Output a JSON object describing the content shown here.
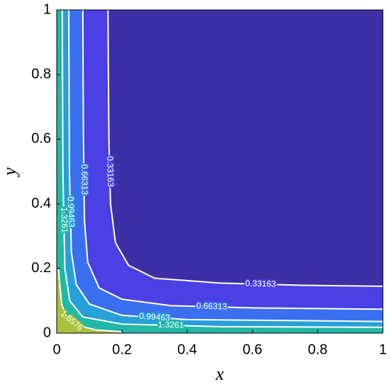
{
  "chart_data": {
    "type": "contour",
    "xlabel": "x",
    "ylabel": "y",
    "xlim": [
      0,
      1
    ],
    "ylim": [
      0,
      1
    ],
    "xticks": [
      0,
      0.2,
      0.4,
      0.6,
      0.8,
      1
    ],
    "yticks": [
      0,
      0.2,
      0.4,
      0.6,
      0.8,
      1
    ],
    "fill_colors": [
      "#3d2fa5",
      "#4a40e3",
      "#3a70ef",
      "#279fd9",
      "#21b8a6",
      "#a9c23b"
    ],
    "line_color": "#ffffff",
    "contours": [
      {
        "level": 0.33163,
        "x": [
          0.157,
          0.16,
          0.165,
          0.18,
          0.22,
          0.3,
          0.5,
          0.75,
          1
        ],
        "y": [
          1,
          0.6,
          0.4,
          0.28,
          0.21,
          0.17,
          0.155,
          0.148,
          0.145
        ]
      },
      {
        "level": 0.66313,
        "x": [
          0.08,
          0.082,
          0.085,
          0.095,
          0.13,
          0.2,
          0.35,
          0.6,
          1
        ],
        "y": [
          1,
          0.6,
          0.35,
          0.22,
          0.14,
          0.105,
          0.085,
          0.078,
          0.074
        ]
      },
      {
        "level": 0.99463,
        "x": [
          0.037,
          0.039,
          0.045,
          0.06,
          0.1,
          0.2,
          0.4,
          1
        ],
        "y": [
          1,
          0.5,
          0.25,
          0.15,
          0.09,
          0.055,
          0.042,
          0.036
        ]
      },
      {
        "level": 1.3261,
        "x": [
          0.017,
          0.019,
          0.025,
          0.04,
          0.08,
          0.2,
          0.5,
          1
        ],
        "y": [
          1,
          0.5,
          0.2,
          0.1,
          0.05,
          0.028,
          0.02,
          0.018
        ]
      },
      {
        "level": 1.6576,
        "x": [
          0.005,
          0.015,
          0.03,
          0.06,
          0.12,
          0.2
        ],
        "y": [
          0.2,
          0.09,
          0.05,
          0.025,
          0.01,
          0.004
        ]
      }
    ]
  }
}
